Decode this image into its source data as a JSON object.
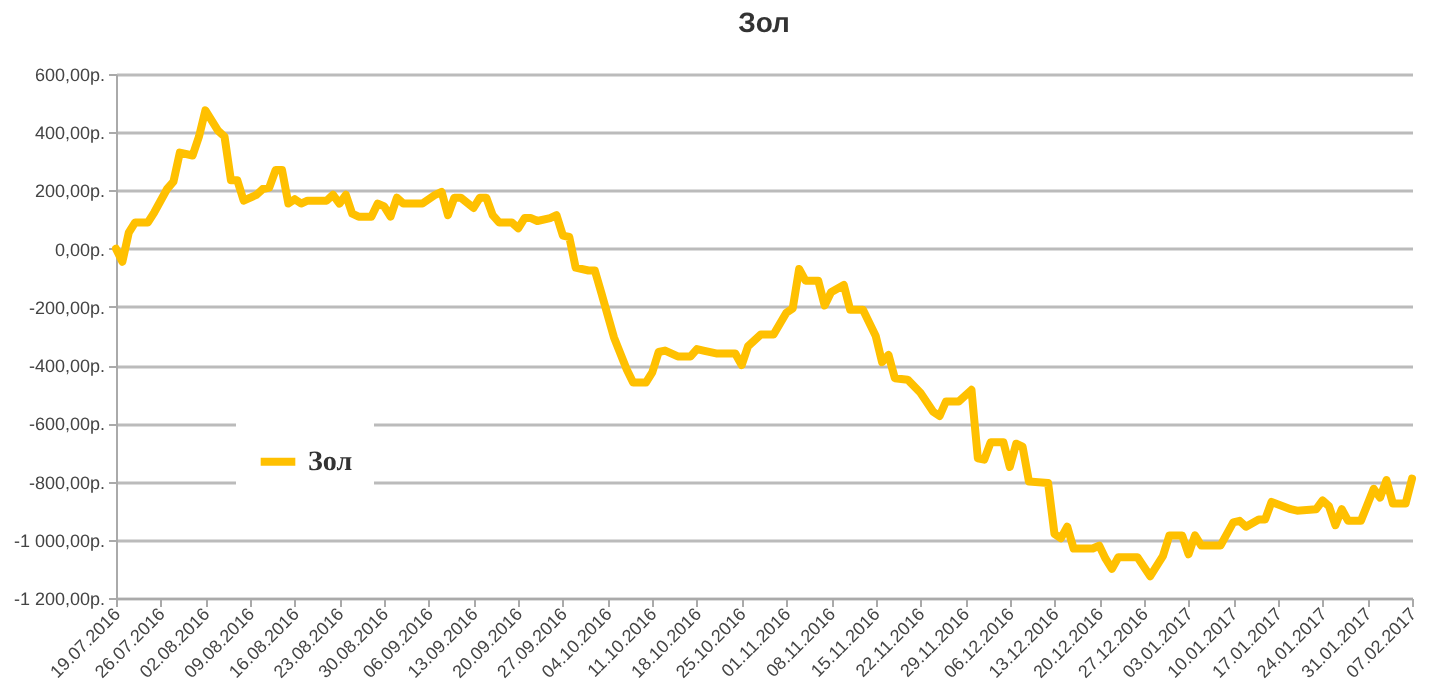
{
  "chart_data": {
    "type": "line",
    "title": "Зол",
    "x": [
      "2016-07-19",
      "2016-07-20",
      "2016-07-21",
      "2016-07-22",
      "2016-07-24",
      "2016-07-25",
      "2016-07-27",
      "2016-07-28",
      "2016-07-29",
      "2016-07-31",
      "2016-08-01",
      "2016-08-02",
      "2016-08-04",
      "2016-08-05",
      "2016-08-06",
      "2016-08-07",
      "2016-08-08",
      "2016-08-10",
      "2016-08-11",
      "2016-08-12",
      "2016-08-13",
      "2016-08-14",
      "2016-08-15",
      "2016-08-16",
      "2016-08-17",
      "2016-08-18",
      "2016-08-21",
      "2016-08-22",
      "2016-08-23",
      "2016-08-24",
      "2016-08-25",
      "2016-08-26",
      "2016-08-28",
      "2016-08-29",
      "2016-08-30",
      "2016-08-31",
      "2016-09-01",
      "2016-09-02",
      "2016-09-05",
      "2016-09-07",
      "2016-09-08",
      "2016-09-09",
      "2016-09-10",
      "2016-09-11",
      "2016-09-13",
      "2016-09-14",
      "2016-09-15",
      "2016-09-16",
      "2016-09-17",
      "2016-09-19",
      "2016-09-20",
      "2016-09-21",
      "2016-09-22",
      "2016-09-23",
      "2016-09-25",
      "2016-09-26",
      "2016-09-27",
      "2016-09-28",
      "2016-09-29",
      "2016-10-01",
      "2016-10-02",
      "2016-10-03",
      "2016-10-05",
      "2016-10-07",
      "2016-10-08",
      "2016-10-10",
      "2016-10-11",
      "2016-10-12",
      "2016-10-13",
      "2016-10-15",
      "2016-10-17",
      "2016-10-18",
      "2016-10-19",
      "2016-10-21",
      "2016-10-24",
      "2016-10-25",
      "2016-10-26",
      "2016-10-28",
      "2016-10-30",
      "2016-11-01",
      "2016-11-02",
      "2016-11-03",
      "2016-11-04",
      "2016-11-06",
      "2016-11-07",
      "2016-11-08",
      "2016-11-10",
      "2016-11-11",
      "2016-11-13",
      "2016-11-15",
      "2016-11-16",
      "2016-11-17",
      "2016-11-18",
      "2016-11-20",
      "2016-11-22",
      "2016-11-24",
      "2016-11-25",
      "2016-11-26",
      "2016-11-28",
      "2016-11-30",
      "2016-12-01",
      "2016-12-02",
      "2016-12-03",
      "2016-12-05",
      "2016-12-06",
      "2016-12-07",
      "2016-12-08",
      "2016-12-09",
      "2016-12-12",
      "2016-12-13",
      "2016-12-14",
      "2016-12-15",
      "2016-12-16",
      "2016-12-19",
      "2016-12-20",
      "2016-12-21",
      "2016-12-22",
      "2016-12-23",
      "2016-12-26",
      "2016-12-28",
      "2016-12-30",
      "2016-12-31",
      "2017-01-02",
      "2017-01-03",
      "2017-01-04",
      "2017-01-05",
      "2017-01-08",
      "2017-01-10",
      "2017-01-11",
      "2017-01-12",
      "2017-01-14",
      "2017-01-15",
      "2017-01-16",
      "2017-01-19",
      "2017-01-20",
      "2017-01-23",
      "2017-01-24",
      "2017-01-25",
      "2017-01-26",
      "2017-01-27",
      "2017-01-28",
      "2017-01-30",
      "2017-02-01",
      "2017-02-02",
      "2017-02-03",
      "2017-02-04",
      "2017-02-06",
      "2017-02-07"
    ],
    "series": [
      {
        "name": "Зол",
        "color": "#ffc000",
        "values": [
          0,
          -45,
          55,
          90,
          90,
          125,
          205,
          230,
          330,
          320,
          385,
          475,
          405,
          385,
          235,
          235,
          165,
          185,
          205,
          210,
          270,
          270,
          155,
          170,
          155,
          165,
          165,
          185,
          155,
          185,
          120,
          110,
          110,
          155,
          145,
          110,
          175,
          155,
          155,
          185,
          195,
          115,
          175,
          175,
          140,
          175,
          175,
          115,
          90,
          90,
          70,
          105,
          105,
          95,
          105,
          115,
          45,
          40,
          -65,
          -75,
          -75,
          -150,
          -305,
          -415,
          -460,
          -460,
          -425,
          -355,
          -350,
          -370,
          -370,
          -345,
          -350,
          -360,
          -360,
          -400,
          -335,
          -295,
          -295,
          -220,
          -205,
          -70,
          -110,
          -110,
          -195,
          -150,
          -125,
          -210,
          -210,
          -300,
          -390,
          -365,
          -445,
          -450,
          -495,
          -560,
          -575,
          -525,
          -525,
          -485,
          -720,
          -725,
          -665,
          -665,
          -750,
          -670,
          -680,
          -800,
          -805,
          -980,
          -995,
          -955,
          -1030,
          -1030,
          -1020,
          -1065,
          -1100,
          -1060,
          -1060,
          -1125,
          -1055,
          -985,
          -985,
          -1050,
          -985,
          -1020,
          -1020,
          -940,
          -935,
          -955,
          -930,
          -930,
          -870,
          -895,
          -900,
          -895,
          -865,
          -885,
          -950,
          -895,
          -935,
          -935,
          -825,
          -855,
          -795,
          -875,
          -875,
          -790
        ]
      }
    ],
    "xlim": [
      "2016-07-19",
      "2017-02-07"
    ],
    "xticks": [
      {
        "value": "2016-07-19",
        "label": "19.07.2016"
      },
      {
        "value": "2016-07-26",
        "label": "26.07.2016"
      },
      {
        "value": "2016-08-02",
        "label": "02.08.2016"
      },
      {
        "value": "2016-08-09",
        "label": "09.08.2016"
      },
      {
        "value": "2016-08-16",
        "label": "16.08.2016"
      },
      {
        "value": "2016-08-23",
        "label": "23.08.2016"
      },
      {
        "value": "2016-08-30",
        "label": "30.08.2016"
      },
      {
        "value": "2016-09-06",
        "label": "06.09.2016"
      },
      {
        "value": "2016-09-13",
        "label": "13.09.2016"
      },
      {
        "value": "2016-09-20",
        "label": "20.09.2016"
      },
      {
        "value": "2016-09-27",
        "label": "27.09.2016"
      },
      {
        "value": "2016-10-04",
        "label": "04.10.2016"
      },
      {
        "value": "2016-10-11",
        "label": "11.10.2016"
      },
      {
        "value": "2016-10-18",
        "label": "18.10.2016"
      },
      {
        "value": "2016-10-25",
        "label": "25.10.2016"
      },
      {
        "value": "2016-11-01",
        "label": "01.11.2016"
      },
      {
        "value": "2016-11-08",
        "label": "08.11.2016"
      },
      {
        "value": "2016-11-15",
        "label": "15.11.2016"
      },
      {
        "value": "2016-11-22",
        "label": "22.11.2016"
      },
      {
        "value": "2016-11-29",
        "label": "29.11.2016"
      },
      {
        "value": "2016-12-06",
        "label": "06.12.2016"
      },
      {
        "value": "2016-12-13",
        "label": "13.12.2016"
      },
      {
        "value": "2016-12-20",
        "label": "20.12.2016"
      },
      {
        "value": "2016-12-27",
        "label": "27.12.2016"
      },
      {
        "value": "2017-01-03",
        "label": "03.01.2017"
      },
      {
        "value": "2017-01-10",
        "label": "10.01.2017"
      },
      {
        "value": "2017-01-17",
        "label": "17.01.2017"
      },
      {
        "value": "2017-01-24",
        "label": "24.01.2017"
      },
      {
        "value": "2017-01-31",
        "label": "31.01.2017"
      },
      {
        "value": "2017-02-07",
        "label": "07.02.2017"
      }
    ],
    "ylim": [
      -1200,
      600
    ],
    "yticks": [
      {
        "value": -1200,
        "label": "-1 200,00р."
      },
      {
        "value": -1000,
        "label": "-1 000,00р."
      },
      {
        "value": -800,
        "label": "-800,00р."
      },
      {
        "value": -600,
        "label": "-600,00р."
      },
      {
        "value": -400,
        "label": "-400,00р."
      },
      {
        "value": -200,
        "label": "-200,00р."
      },
      {
        "value": 0,
        "label": "0,00р."
      },
      {
        "value": 200,
        "label": "200,00р."
      },
      {
        "value": 400,
        "label": "400,00р."
      },
      {
        "value": 600,
        "label": "600,00р."
      }
    ],
    "grid": "y",
    "legend": "left"
  }
}
